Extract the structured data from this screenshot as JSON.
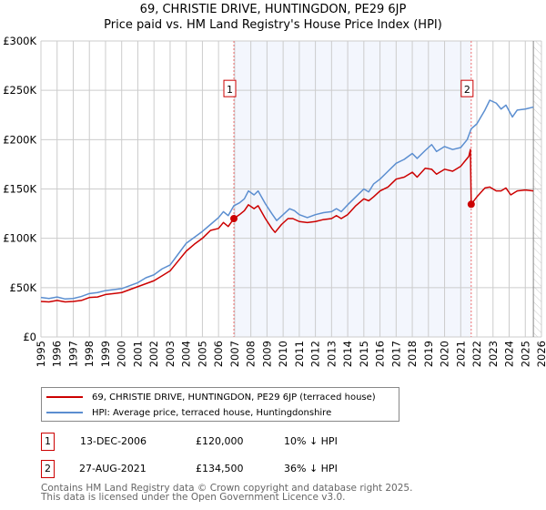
{
  "title": "69, CHRISTIE DRIVE, HUNTINGDON, PE29 6JP",
  "subtitle": "Price paid vs. HM Land Registry's House Price Index (HPI)",
  "chart_data": {
    "type": "line",
    "title": "69, CHRISTIE DRIVE, HUNTINGDON, PE29 6JP",
    "subtitle": "Price paid vs. HM Land Registry's House Price Index (HPI)",
    "xlim": [
      1995,
      2026
    ],
    "ylim": [
      0,
      300000
    ],
    "x_ticks": [
      "1995",
      "1996",
      "1997",
      "1998",
      "1999",
      "2000",
      "2001",
      "2002",
      "2003",
      "2004",
      "2005",
      "2006",
      "2007",
      "2008",
      "2009",
      "2010",
      "2011",
      "2012",
      "2013",
      "2014",
      "2015",
      "2016",
      "2017",
      "2018",
      "2019",
      "2020",
      "2021",
      "2022",
      "2023",
      "2024",
      "2025",
      "2026"
    ],
    "y_ticks": [
      {
        "v": 0,
        "label": "£0"
      },
      {
        "v": 50000,
        "label": "£50K"
      },
      {
        "v": 100000,
        "label": "£100K"
      },
      {
        "v": 150000,
        "label": "£150K"
      },
      {
        "v": 200000,
        "label": "£200K"
      },
      {
        "v": 250000,
        "label": "£250K"
      },
      {
        "v": 300000,
        "label": "£300K"
      }
    ],
    "grid": true,
    "shaded_range": [
      2006.95,
      2021.65
    ],
    "forecast_hatch_from": 2025.5,
    "series": [
      {
        "name": "69, CHRISTIE DRIVE, HUNTINGDON, PE29 6JP (terraced house)",
        "color": "#cc0000",
        "points": [
          [
            1995,
            36
          ],
          [
            1995.5,
            35.5
          ],
          [
            1996,
            37
          ],
          [
            1996.5,
            35.5
          ],
          [
            1997,
            36
          ],
          [
            1997.5,
            37
          ],
          [
            1998,
            40
          ],
          [
            1998.5,
            40.5
          ],
          [
            1999,
            43
          ],
          [
            1999.5,
            44
          ],
          [
            2000,
            45
          ],
          [
            2000.5,
            48
          ],
          [
            2001,
            51
          ],
          [
            2001.5,
            54
          ],
          [
            2002,
            57
          ],
          [
            2002.5,
            62
          ],
          [
            2003,
            67
          ],
          [
            2003.5,
            77
          ],
          [
            2004,
            87
          ],
          [
            2004.5,
            94
          ],
          [
            2005,
            100
          ],
          [
            2005.5,
            108
          ],
          [
            2006,
            110
          ],
          [
            2006.3,
            116
          ],
          [
            2006.6,
            112
          ],
          [
            2006.95,
            120
          ],
          [
            2007.3,
            124
          ],
          [
            2007.6,
            128
          ],
          [
            2007.85,
            134
          ],
          [
            2008.2,
            130
          ],
          [
            2008.45,
            133
          ],
          [
            2008.9,
            120
          ],
          [
            2009.3,
            110
          ],
          [
            2009.5,
            106
          ],
          [
            2009.9,
            114
          ],
          [
            2010.3,
            120
          ],
          [
            2010.6,
            120
          ],
          [
            2011,
            117
          ],
          [
            2011.5,
            116
          ],
          [
            2012,
            117
          ],
          [
            2012.5,
            119
          ],
          [
            2013,
            120
          ],
          [
            2013.3,
            123
          ],
          [
            2013.6,
            120
          ],
          [
            2014,
            124
          ],
          [
            2014.5,
            133
          ],
          [
            2015,
            140
          ],
          [
            2015.3,
            138
          ],
          [
            2015.6,
            142
          ],
          [
            2016,
            148
          ],
          [
            2016.5,
            152
          ],
          [
            2017,
            160
          ],
          [
            2017.5,
            162
          ],
          [
            2018,
            167
          ],
          [
            2018.3,
            162
          ],
          [
            2018.8,
            171
          ],
          [
            2019.2,
            170
          ],
          [
            2019.5,
            165
          ],
          [
            2020,
            170
          ],
          [
            2020.5,
            168
          ],
          [
            2021,
            173
          ],
          [
            2021.5,
            183
          ],
          [
            2021.6,
            190
          ],
          [
            2021.65,
            134.5
          ],
          [
            2022,
            142
          ],
          [
            2022.5,
            151
          ],
          [
            2022.8,
            152
          ],
          [
            2023.2,
            148
          ],
          [
            2023.5,
            148
          ],
          [
            2023.8,
            151
          ],
          [
            2024.1,
            144
          ],
          [
            2024.5,
            148
          ],
          [
            2025,
            149
          ],
          [
            2025.5,
            148
          ]
        ]
      },
      {
        "name": "HPI: Average price, terraced house, Huntingdonshire",
        "color": "#5b8ed0",
        "points": [
          [
            1995,
            40
          ],
          [
            1995.5,
            39
          ],
          [
            1996,
            40.5
          ],
          [
            1996.5,
            38.5
          ],
          [
            1997,
            39
          ],
          [
            1997.5,
            41
          ],
          [
            1998,
            44
          ],
          [
            1998.5,
            45
          ],
          [
            1999,
            47
          ],
          [
            1999.5,
            48
          ],
          [
            2000,
            49
          ],
          [
            2000.5,
            52
          ],
          [
            2001,
            55
          ],
          [
            2001.5,
            60
          ],
          [
            2002,
            63
          ],
          [
            2002.5,
            69
          ],
          [
            2003,
            73
          ],
          [
            2003.5,
            84
          ],
          [
            2004,
            95
          ],
          [
            2004.5,
            101
          ],
          [
            2005,
            107
          ],
          [
            2005.5,
            114
          ],
          [
            2006,
            121
          ],
          [
            2006.3,
            127
          ],
          [
            2006.6,
            123
          ],
          [
            2006.95,
            133
          ],
          [
            2007.3,
            136
          ],
          [
            2007.6,
            140
          ],
          [
            2007.85,
            148
          ],
          [
            2008.2,
            144
          ],
          [
            2008.45,
            148
          ],
          [
            2008.9,
            135
          ],
          [
            2009.3,
            125
          ],
          [
            2009.6,
            118
          ],
          [
            2010,
            124
          ],
          [
            2010.4,
            130
          ],
          [
            2010.7,
            128
          ],
          [
            2011,
            124
          ],
          [
            2011.5,
            121
          ],
          [
            2012,
            124
          ],
          [
            2012.5,
            126
          ],
          [
            2013,
            127
          ],
          [
            2013.3,
            130
          ],
          [
            2013.6,
            127
          ],
          [
            2014,
            134
          ],
          [
            2014.5,
            142
          ],
          [
            2015,
            150
          ],
          [
            2015.3,
            147
          ],
          [
            2015.6,
            155
          ],
          [
            2016,
            160
          ],
          [
            2016.5,
            168
          ],
          [
            2017,
            176
          ],
          [
            2017.5,
            180
          ],
          [
            2018,
            186
          ],
          [
            2018.3,
            181
          ],
          [
            2018.8,
            189
          ],
          [
            2019.2,
            195
          ],
          [
            2019.5,
            188
          ],
          [
            2020,
            193
          ],
          [
            2020.5,
            190
          ],
          [
            2021,
            192
          ],
          [
            2021.4,
            200
          ],
          [
            2021.65,
            211
          ],
          [
            2022,
            216
          ],
          [
            2022.5,
            230
          ],
          [
            2022.8,
            240
          ],
          [
            2023.2,
            237
          ],
          [
            2023.5,
            231
          ],
          [
            2023.8,
            235
          ],
          [
            2024.2,
            223
          ],
          [
            2024.5,
            230
          ],
          [
            2025,
            231
          ],
          [
            2025.5,
            233
          ]
        ]
      }
    ],
    "annotations": [
      {
        "label": "1",
        "x": 2006.95,
        "value": 120000
      },
      {
        "label": "2",
        "x": 2021.65,
        "value": 134500
      }
    ]
  },
  "legend": {
    "series1": "69, CHRISTIE DRIVE, HUNTINGDON, PE29 6JP (terraced house)",
    "series2": "HPI: Average price, terraced house, Huntingdonshire"
  },
  "transactions": [
    {
      "num": "1",
      "date": "13-DEC-2006",
      "price": "£120,000",
      "hpi": "10% ↓ HPI"
    },
    {
      "num": "2",
      "date": "27-AUG-2021",
      "price": "£134,500",
      "hpi": "36% ↓ HPI"
    }
  ],
  "footer": {
    "line1": "Contains HM Land Registry data © Crown copyright and database right 2025.",
    "line2": "This data is licensed under the Open Government Licence v3.0."
  }
}
